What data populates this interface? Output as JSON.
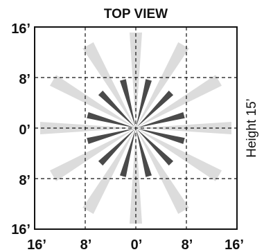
{
  "title": "TOP VIEW",
  "side_label": "Height 15’",
  "y_ticks": [
    "16’",
    "8’",
    "0’",
    "8’",
    "16’"
  ],
  "x_ticks": [
    "16’",
    "8’",
    "0’",
    "8’",
    "16’"
  ],
  "colors": {
    "outer_beam": "#dcdcdc",
    "inner_beam": "#4a4a4a",
    "frame": "#111111",
    "grid": "#111111"
  }
}
